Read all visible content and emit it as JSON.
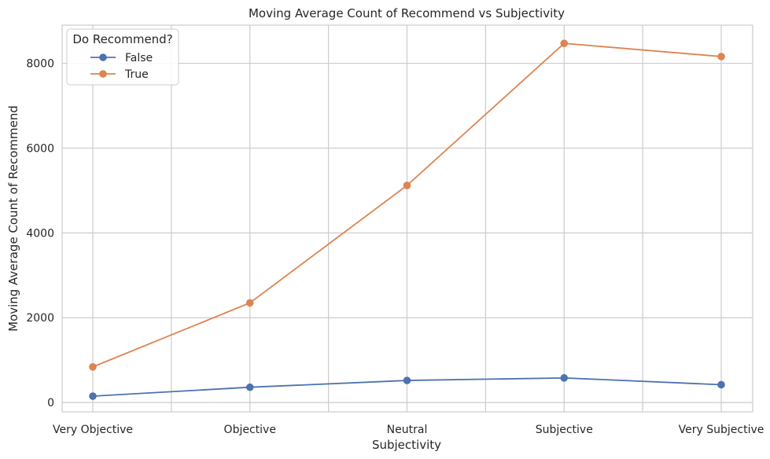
{
  "chart_data": {
    "type": "line",
    "title": "Moving Average Count of Recommend vs Subjectivity",
    "xlabel": "Subjectivity",
    "ylabel": "Moving Average Count of Recommend",
    "categories": [
      "Very Objective",
      "Objective",
      "Neutral",
      "Subjective",
      "Very Subjective"
    ],
    "y_ticks": [
      0,
      2000,
      4000,
      6000,
      8000
    ],
    "ylim": [
      -220,
      8900
    ],
    "grid": true,
    "legend": {
      "title": "Do Recommend?",
      "placement": "top-left"
    },
    "series": [
      {
        "name": "False",
        "color": "#4c72b0",
        "values": [
          150,
          360,
          520,
          580,
          420
        ]
      },
      {
        "name": "True",
        "color": "#dd8452",
        "values": [
          840,
          2350,
          5120,
          8470,
          8160
        ]
      }
    ]
  }
}
